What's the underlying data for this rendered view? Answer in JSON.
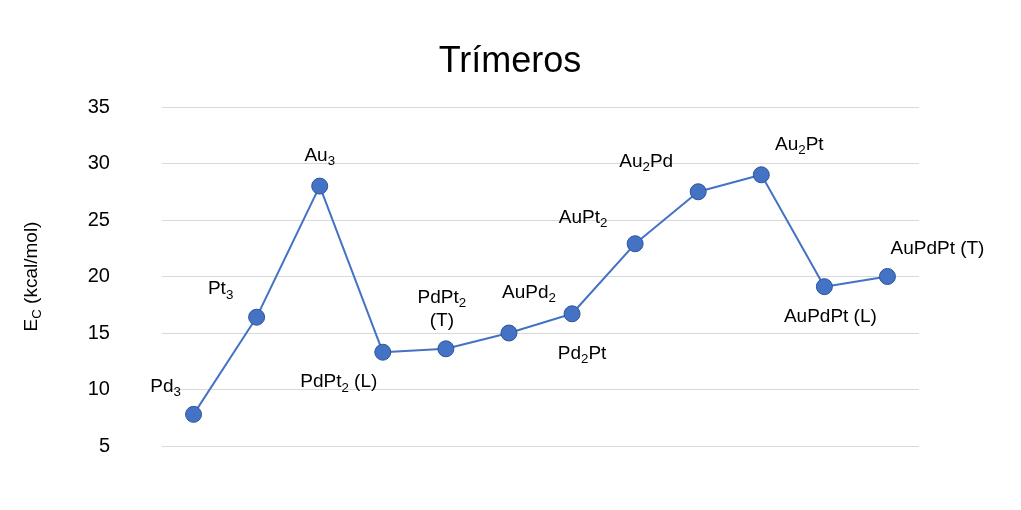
{
  "chart_data": {
    "type": "line",
    "title": "Trímeros",
    "ylabel": "E$_{C}$ (kcal/mol)",
    "categories": [
      null,
      null,
      null,
      null,
      null,
      null,
      null,
      null,
      null,
      null,
      null,
      null
    ],
    "series": [
      {
        "color": "#4472c4",
        "values": [
          7.8,
          16.4,
          28,
          13.3,
          13.6,
          15,
          16.7,
          22.9,
          27.5,
          29,
          19.1,
          20
        ]
      }
    ],
    "annotations": [
      "Pd$_{3}$",
      "Pt$_{3}$",
      "Au$_{3}$",
      "PdPt$_{2}$ (L)",
      "PdPt$_{2}$ (T)",
      "AuPd$_{2}$",
      "Pd$_{2}$Pt",
      "AuPt$_{2}$",
      "Au$_{2}$Pd",
      "Au$_{2}$Pt",
      "AuPdPt (L)",
      "AuPdPt (T)"
    ],
    "ylim": [
      5,
      35
    ],
    "yticks": [
      5,
      10,
      15,
      20,
      25,
      30,
      35
    ],
    "grid": "y",
    "legend": false,
    "marker": "circle",
    "line_style": "solid",
    "tick_labels": "y"
  }
}
